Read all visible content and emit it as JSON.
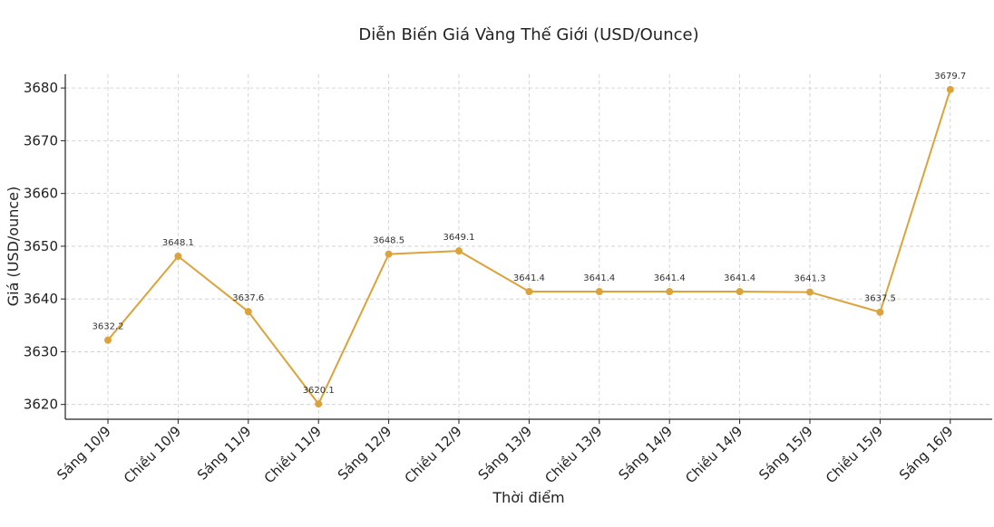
{
  "chart_data": {
    "type": "line",
    "title": "Diễn Biến Giá Vàng Thế Giới (USD/Ounce)",
    "xlabel": "Thời điểm",
    "ylabel": "Giá (USD/ounce)",
    "categories": [
      "Sáng 10/9",
      "Chiều 10/9",
      "Sáng 11/9",
      "Chiều 11/9",
      "Sáng 12/9",
      "Chiều 12/9",
      "Sáng 13/9",
      "Chiều 13/9",
      "Sáng 14/9",
      "Chiều 14/9",
      "Sáng 15/9",
      "Chiều 15/9",
      "Sáng 16/9"
    ],
    "values": [
      3632.2,
      3648.1,
      3637.6,
      3620.1,
      3648.5,
      3649.1,
      3641.4,
      3641.4,
      3641.4,
      3641.4,
      3641.3,
      3637.5,
      3679.7
    ],
    "data_labels": [
      "3632.2",
      "3648.1",
      "3637.6",
      "3620.1",
      "3648.5",
      "3649.1",
      "3641.4",
      "3641.4",
      "3641.4",
      "3641.4",
      "3641.3",
      "3637.5",
      "3679.7"
    ],
    "yticks": [
      3620,
      3630,
      3640,
      3650,
      3660,
      3670,
      3680
    ],
    "ylim": [
      3617.2,
      3682.6
    ],
    "grid": true,
    "legend": "none",
    "color": "#dba33a"
  }
}
